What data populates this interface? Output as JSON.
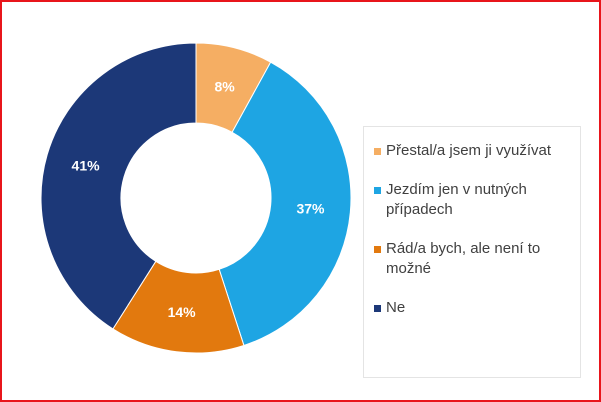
{
  "chart_data": {
    "type": "donut",
    "categories": [
      "Přestal/a jsem ji využívat",
      "Jezdím jen v nutných případech",
      "Rád/a bych, ale není to možné",
      "Ne"
    ],
    "values": [
      8,
      37,
      14,
      41
    ],
    "value_labels": [
      "8%",
      "37%",
      "14%",
      "41%"
    ],
    "colors": [
      "#f5ae63",
      "#1ea5e3",
      "#e2790e",
      "#1c3878"
    ]
  }
}
